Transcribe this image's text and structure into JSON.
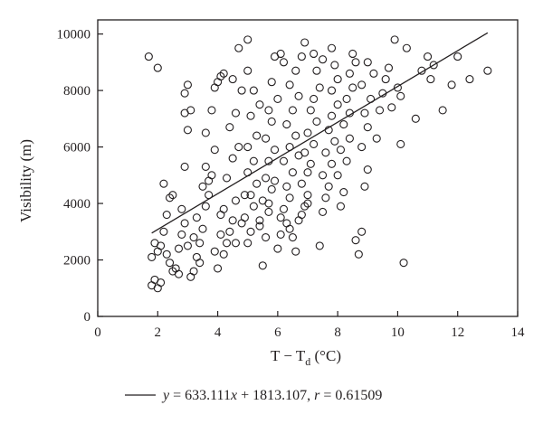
{
  "chart_data": {
    "type": "scatter",
    "xlabel": {
      "main": "T − T",
      "sub": "d",
      "unit": " (°C)"
    },
    "ylabel": "Visibility (m)",
    "xlim": [
      0,
      14
    ],
    "ylim": [
      0,
      10500
    ],
    "x_ticks": [
      0,
      2,
      4,
      6,
      8,
      10,
      12,
      14
    ],
    "y_ticks": [
      0,
      2000,
      4000,
      6000,
      8000,
      10000
    ],
    "grid": false,
    "legend": {
      "placement": "bottom",
      "parts": [
        {
          "text": "y",
          "italic": true
        },
        {
          "text": " = 633.111",
          "italic": false
        },
        {
          "text": "x",
          "italic": true
        },
        {
          "text": " + 1813.107, ",
          "italic": false
        },
        {
          "text": "r",
          "italic": true
        },
        {
          "text": " = 0.61509",
          "italic": false
        }
      ]
    },
    "fit_line": {
      "slope": 633.111,
      "intercept": 1813.107,
      "x_range": [
        1.8,
        13.0
      ]
    },
    "points": [
      [
        1.7,
        9200
      ],
      [
        2.0,
        8800
      ],
      [
        1.8,
        1100
      ],
      [
        1.9,
        1300
      ],
      [
        2.0,
        1000
      ],
      [
        2.1,
        1200
      ],
      [
        1.8,
        2100
      ],
      [
        2.0,
        2300
      ],
      [
        1.9,
        2600
      ],
      [
        2.1,
        2500
      ],
      [
        2.2,
        3000
      ],
      [
        2.3,
        3600
      ],
      [
        2.4,
        4200
      ],
      [
        2.2,
        4700
      ],
      [
        2.5,
        4300
      ],
      [
        2.3,
        2200
      ],
      [
        2.4,
        1900
      ],
      [
        2.6,
        1700
      ],
      [
        2.7,
        2400
      ],
      [
        2.8,
        2900
      ],
      [
        2.9,
        3300
      ],
      [
        2.8,
        3800
      ],
      [
        2.9,
        5300
      ],
      [
        3.0,
        6600
      ],
      [
        2.9,
        7200
      ],
      [
        3.1,
        7300
      ],
      [
        2.9,
        7900
      ],
      [
        3.0,
        8200
      ],
      [
        3.1,
        1400
      ],
      [
        3.2,
        1600
      ],
      [
        3.3,
        2100
      ],
      [
        3.4,
        2600
      ],
      [
        3.5,
        3100
      ],
      [
        3.3,
        3500
      ],
      [
        3.6,
        3900
      ],
      [
        3.7,
        4300
      ],
      [
        3.5,
        4600
      ],
      [
        3.8,
        5000
      ],
      [
        3.6,
        5300
      ],
      [
        3.9,
        5900
      ],
      [
        3.6,
        6500
      ],
      [
        3.8,
        7300
      ],
      [
        3.9,
        8100
      ],
      [
        4.0,
        8300
      ],
      [
        4.1,
        8500
      ],
      [
        4.2,
        8600
      ],
      [
        4.0,
        1700
      ],
      [
        4.2,
        2200
      ],
      [
        4.3,
        2600
      ],
      [
        4.4,
        3000
      ],
      [
        4.5,
        3400
      ],
      [
        4.2,
        3800
      ],
      [
        4.6,
        4100
      ],
      [
        4.3,
        4900
      ],
      [
        4.5,
        5600
      ],
      [
        4.7,
        6000
      ],
      [
        4.4,
        6700
      ],
      [
        4.6,
        7200
      ],
      [
        4.8,
        8000
      ],
      [
        4.5,
        8400
      ],
      [
        4.7,
        9500
      ],
      [
        5.0,
        9800
      ],
      [
        5.0,
        2600
      ],
      [
        5.1,
        3000
      ],
      [
        4.9,
        3500
      ],
      [
        5.2,
        3900
      ],
      [
        5.1,
        4300
      ],
      [
        5.3,
        4700
      ],
      [
        5.0,
        5100
      ],
      [
        5.2,
        5500
      ],
      [
        5.0,
        6000
      ],
      [
        5.3,
        6400
      ],
      [
        5.1,
        7100
      ],
      [
        5.4,
        7500
      ],
      [
        5.2,
        8000
      ],
      [
        5.0,
        8700
      ],
      [
        5.5,
        1800
      ],
      [
        5.6,
        2800
      ],
      [
        5.4,
        3200
      ],
      [
        5.7,
        3700
      ],
      [
        5.5,
        4100
      ],
      [
        5.8,
        4500
      ],
      [
        5.6,
        4900
      ],
      [
        5.7,
        5500
      ],
      [
        5.9,
        5900
      ],
      [
        5.6,
        6300
      ],
      [
        5.8,
        6900
      ],
      [
        5.7,
        7300
      ],
      [
        6.0,
        7700
      ],
      [
        5.8,
        8300
      ],
      [
        5.9,
        9200
      ],
      [
        6.1,
        9300
      ],
      [
        6.2,
        9000
      ],
      [
        6.0,
        2400
      ],
      [
        6.1,
        2900
      ],
      [
        6.3,
        3300
      ],
      [
        6.2,
        3800
      ],
      [
        6.4,
        4200
      ],
      [
        6.3,
        4600
      ],
      [
        6.5,
        5100
      ],
      [
        6.2,
        5500
      ],
      [
        6.4,
        6000
      ],
      [
        6.6,
        6400
      ],
      [
        6.3,
        6800
      ],
      [
        6.5,
        7300
      ],
      [
        6.7,
        7800
      ],
      [
        6.4,
        8200
      ],
      [
        6.6,
        8700
      ],
      [
        6.8,
        9200
      ],
      [
        6.9,
        9700
      ],
      [
        6.5,
        2800
      ],
      [
        6.7,
        3400
      ],
      [
        6.9,
        3900
      ],
      [
        7.0,
        4300
      ],
      [
        6.8,
        4700
      ],
      [
        7.0,
        5100
      ],
      [
        7.1,
        5400
      ],
      [
        6.9,
        5800
      ],
      [
        7.2,
        6100
      ],
      [
        7.0,
        6500
      ],
      [
        7.3,
        6900
      ],
      [
        7.1,
        7300
      ],
      [
        7.2,
        7700
      ],
      [
        7.4,
        8100
      ],
      [
        7.3,
        8700
      ],
      [
        7.5,
        9100
      ],
      [
        7.2,
        9300
      ],
      [
        7.4,
        2500
      ],
      [
        7.5,
        3700
      ],
      [
        7.6,
        4200
      ],
      [
        7.7,
        4600
      ],
      [
        7.5,
        5000
      ],
      [
        7.8,
        5400
      ],
      [
        7.6,
        5800
      ],
      [
        7.9,
        6200
      ],
      [
        7.7,
        6600
      ],
      [
        7.8,
        7100
      ],
      [
        8.0,
        7500
      ],
      [
        7.8,
        8000
      ],
      [
        8.0,
        8400
      ],
      [
        7.9,
        8900
      ],
      [
        7.8,
        9500
      ],
      [
        8.1,
        3900
      ],
      [
        8.2,
        4400
      ],
      [
        8.0,
        5000
      ],
      [
        8.3,
        5500
      ],
      [
        8.1,
        5900
      ],
      [
        8.4,
        6300
      ],
      [
        8.2,
        6800
      ],
      [
        8.4,
        7200
      ],
      [
        8.3,
        7700
      ],
      [
        8.5,
        8100
      ],
      [
        8.4,
        8600
      ],
      [
        8.6,
        9000
      ],
      [
        8.5,
        9300
      ],
      [
        8.6,
        2700
      ],
      [
        8.7,
        2200
      ],
      [
        8.8,
        3000
      ],
      [
        8.9,
        4600
      ],
      [
        9.0,
        5200
      ],
      [
        8.8,
        6000
      ],
      [
        9.0,
        6700
      ],
      [
        8.9,
        7200
      ],
      [
        9.1,
        7700
      ],
      [
        8.8,
        8200
      ],
      [
        9.2,
        8600
      ],
      [
        9.0,
        9000
      ],
      [
        9.3,
        6300
      ],
      [
        9.4,
        7300
      ],
      [
        9.5,
        7900
      ],
      [
        9.6,
        8400
      ],
      [
        9.7,
        8800
      ],
      [
        9.8,
        7400
      ],
      [
        9.9,
        9800
      ],
      [
        10.0,
        8100
      ],
      [
        10.1,
        6100
      ],
      [
        10.2,
        1900
      ],
      [
        10.3,
        9500
      ],
      [
        10.1,
        7800
      ],
      [
        10.6,
        7000
      ],
      [
        10.8,
        8700
      ],
      [
        11.0,
        9200
      ],
      [
        11.1,
        8400
      ],
      [
        11.2,
        8900
      ],
      [
        11.5,
        7300
      ],
      [
        11.8,
        8200
      ],
      [
        12.0,
        9200
      ],
      [
        12.4,
        8400
      ],
      [
        13.0,
        8700
      ],
      [
        3.0,
        2500
      ],
      [
        3.2,
        2800
      ],
      [
        2.7,
        1500
      ],
      [
        2.5,
        1600
      ],
      [
        3.4,
        1900
      ],
      [
        3.9,
        2300
      ],
      [
        4.1,
        2900
      ],
      [
        4.6,
        2600
      ],
      [
        4.8,
        3300
      ],
      [
        4.1,
        3600
      ],
      [
        3.7,
        4800
      ],
      [
        4.9,
        4300
      ],
      [
        5.4,
        3400
      ],
      [
        5.7,
        4000
      ],
      [
        6.1,
        3500
      ],
      [
        6.4,
        3100
      ],
      [
        6.6,
        2300
      ],
      [
        6.8,
        3600
      ],
      [
        7.0,
        4000
      ],
      [
        5.9,
        4800
      ],
      [
        6.7,
        5700
      ]
    ]
  }
}
